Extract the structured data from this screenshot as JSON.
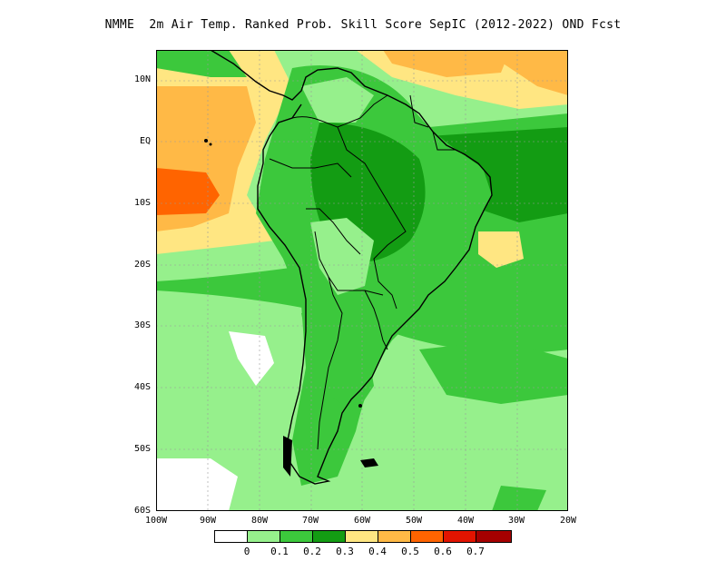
{
  "title": "NMME  2m Air Temp. Ranked Prob. Skill Score SepIC (2012-2022) OND Fcst",
  "map": {
    "region": "South America",
    "lat_labels": [
      "10N",
      "EQ",
      "10S",
      "20S",
      "30S",
      "40S",
      "50S",
      "60S"
    ],
    "lon_labels": [
      "100W",
      "90W",
      "80W",
      "70W",
      "60W",
      "50W",
      "40W",
      "30W",
      "20W"
    ]
  },
  "legend": {
    "ticks": [
      "0",
      "0.1",
      "0.2",
      "0.3",
      "0.4",
      "0.5",
      "0.6",
      "0.7"
    ],
    "colors": [
      "#ffffff",
      "#96f08c",
      "#3cc83c",
      "#139c13",
      "#ffe682",
      "#ffb946",
      "#ff6400",
      "#e11400",
      "#a50000"
    ]
  }
}
